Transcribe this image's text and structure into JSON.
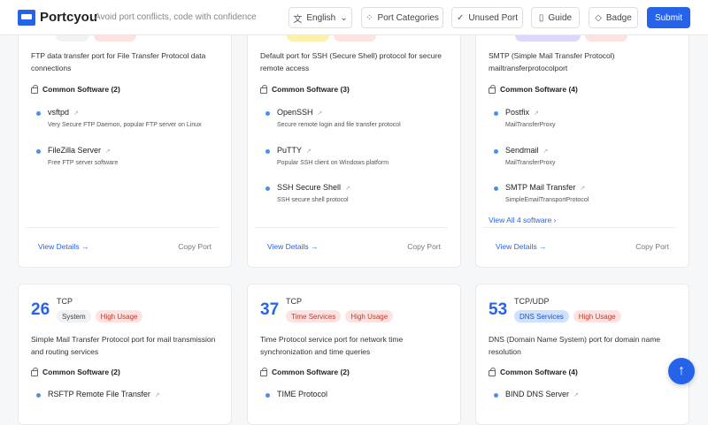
{
  "header": {
    "brand": "Portcyou",
    "tagline": "Avoid port conflicts, code with confidence",
    "language": "English",
    "port_categories": "Port Categories",
    "unused_port": "Unused Port",
    "guide": "Guide",
    "badge": "Badge",
    "submit": "Submit"
  },
  "colors": {
    "accent": "#2563eb"
  },
  "top_cards": [
    {
      "desc": "FTP data transfer port for File Transfer Protocol data connections",
      "sw_title": "Common Software (2)",
      "software": [
        {
          "name": "vsftpd",
          "desc": "Very Secure FTP Daemon, popular FTP server on Linux"
        },
        {
          "name": "FileZilla Server",
          "desc": "Free FTP server software"
        }
      ],
      "view_details": "View Details",
      "copy": "Copy Port"
    },
    {
      "desc": "Default port for SSH (Secure Shell) protocol for secure remote access",
      "sw_title": "Common Software (3)",
      "software": [
        {
          "name": "OpenSSH",
          "desc": "Secure remote login and file transfer protocol"
        },
        {
          "name": "PuTTY",
          "desc": "Popular SSH client on Windows platform"
        },
        {
          "name": "SSH Secure Shell",
          "desc": "SSH secure shell protocol"
        }
      ],
      "view_details": "View Details",
      "copy": "Copy Port"
    },
    {
      "desc": "SMTP (Simple Mail Transfer Protocol) mailtransferprotocolport",
      "sw_title": "Common Software (4)",
      "software": [
        {
          "name": "Postfix",
          "desc": "MailTransferProxy"
        },
        {
          "name": "Sendmail",
          "desc": "MailTransferProxy"
        },
        {
          "name": "SMTP Mail Transfer",
          "desc": "SimpleEmailTransportProtocol"
        }
      ],
      "view_all": "View All 4 software",
      "view_details": "View Details",
      "copy": "Copy Port"
    }
  ],
  "bottom_cards": [
    {
      "port": "26",
      "proto": "TCP",
      "tags": [
        "System",
        "High Usage"
      ],
      "desc": "Simple Mail Transfer Protocol port for mail transmission and routing services",
      "sw_title": "Common Software (2)",
      "first_sw": "RSFTP Remote File Transfer"
    },
    {
      "port": "37",
      "proto": "TCP",
      "tags": [
        "Time Services",
        "High Usage"
      ],
      "desc": "Time Protocol service port for network time synchronization and time queries",
      "sw_title": "Common Software (2)",
      "first_sw": "TIME Protocol"
    },
    {
      "port": "53",
      "proto": "TCP/UDP",
      "tags": [
        "DNS Services",
        "High Usage"
      ],
      "desc": "DNS (Domain Name System) port for domain name resolution",
      "sw_title": "Common Software (4)",
      "first_sw": "BIND DNS Server"
    }
  ]
}
